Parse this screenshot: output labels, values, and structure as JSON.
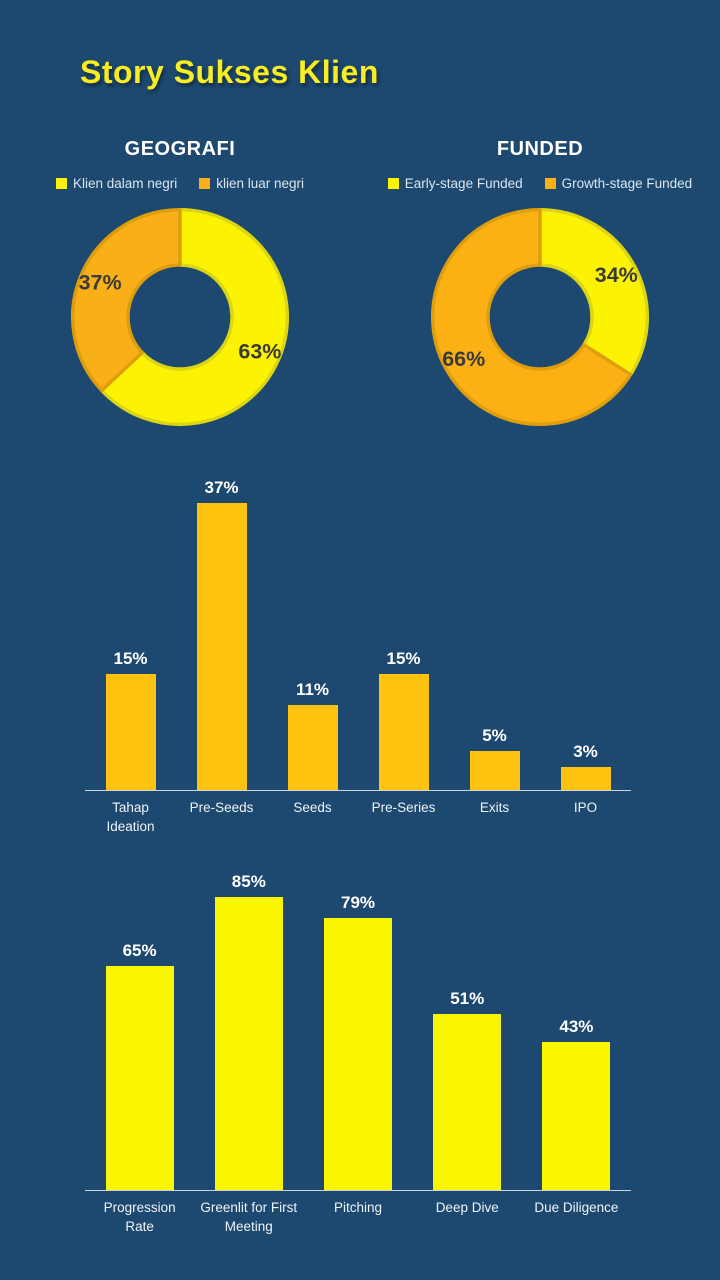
{
  "title": "Story Sukses Klien",
  "colors": {
    "background": "#1D486F",
    "title": "#F8ED22",
    "header_text": "#FFFFFF",
    "legend_text": "#DCE6F1",
    "donut_label": "#3A3A3A",
    "bar_label": "#FFFFFF",
    "category_text": "#EFF4F9",
    "axis_line": "#C9D6E3",
    "yellow": "#FBF303",
    "orange": "#FBB013"
  },
  "chart_data": [
    {
      "type": "pie",
      "title": "GEOGRAFI",
      "donut": true,
      "legend_position": "top",
      "slices": [
        {
          "name": "Klien dalam negri",
          "value": 63,
          "label": "63%",
          "fill": "#FBF303",
          "stroke": "#DBD513"
        },
        {
          "name": "klien luar negri",
          "value": 37,
          "label": "37%",
          "fill": "#F9AF17",
          "stroke": "#DE9D0B"
        }
      ]
    },
    {
      "type": "pie",
      "title": "FUNDED",
      "donut": true,
      "legend_position": "top",
      "slices": [
        {
          "name": "Early-stage Funded",
          "value": 34,
          "label": "34%",
          "fill": "#FBF303",
          "stroke": "#DBD513"
        },
        {
          "name": "Growth-stage Funded",
          "value": 66,
          "label": "66%",
          "fill": "#FBB013",
          "stroke": "#DF9F0C"
        }
      ]
    },
    {
      "type": "bar",
      "categories": [
        "Tahap Ideation",
        "Pre-Seeds",
        "Seeds",
        "Pre-Series",
        "Exits",
        "IPO"
      ],
      "values": [
        15,
        37,
        11,
        15,
        5,
        3
      ],
      "labels": [
        "15%",
        "37%",
        "11%",
        "15%",
        "5%",
        "3%"
      ],
      "ylim": [
        0,
        40
      ],
      "bar_color": "#FFC20E",
      "grid": false,
      "legend_position": "none"
    },
    {
      "type": "bar",
      "categories": [
        "Progression Rate",
        "Greenlit for First Meeting",
        "Pitching",
        "Deep Dive",
        "Due Diligence"
      ],
      "values": [
        65,
        85,
        79,
        51,
        43
      ],
      "labels": [
        "65%",
        "85%",
        "79%",
        "51%",
        "43%"
      ],
      "ylim": [
        0,
        90
      ],
      "bar_color": "#FAF500",
      "grid": false,
      "legend_position": "none"
    }
  ]
}
